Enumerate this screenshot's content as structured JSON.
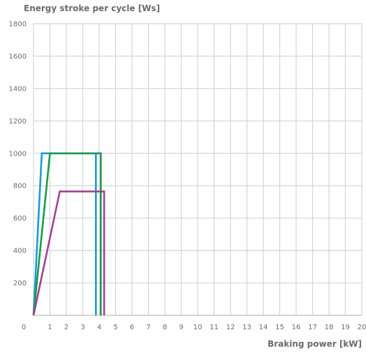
{
  "chart_data": {
    "type": "line",
    "title": "",
    "ylabel": "Energy stroke per cycle [Ws]",
    "xlabel": "Braking power [kW]",
    "xlim": [
      0,
      20
    ],
    "ylim": [
      0,
      1800
    ],
    "xticks": [
      0,
      1,
      2,
      3,
      4,
      5,
      6,
      7,
      8,
      9,
      10,
      11,
      12,
      13,
      14,
      15,
      16,
      17,
      18,
      19,
      20
    ],
    "yticks": [
      200,
      400,
      600,
      800,
      1000,
      1200,
      1400,
      1600,
      1800
    ],
    "grid": true,
    "legend": "none",
    "series": [
      {
        "color": "#1a9ad6",
        "x": [
          0,
          0.5,
          3.8,
          3.8
        ],
        "y": [
          0,
          1000,
          1000,
          0
        ]
      },
      {
        "color": "#1a9a4a",
        "x": [
          0,
          1.0,
          4.1,
          4.1
        ],
        "y": [
          0,
          1000,
          1000,
          0
        ]
      },
      {
        "color": "#a0418f",
        "x": [
          0,
          1.6,
          4.3,
          4.3
        ],
        "y": [
          0,
          765,
          765,
          0
        ]
      }
    ]
  }
}
